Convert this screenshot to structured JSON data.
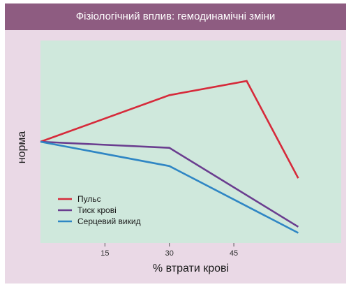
{
  "chart_data": {
    "type": "line",
    "title": "Фізіологічний вплив: гемодинамічні зміни",
    "xlabel": "% втрати крові",
    "ylabel": "норма",
    "x_ticks": [
      15,
      30,
      45
    ],
    "xlim": [
      0,
      70
    ],
    "ylim": [
      0,
      100
    ],
    "grid": false,
    "legend_position": "bottom-left",
    "series": [
      {
        "name": "Пульс",
        "color": "#d62a3a",
        "x": [
          0,
          30,
          48,
          60
        ],
        "y": [
          50,
          73,
          80,
          32
        ]
      },
      {
        "name": "Тиск крові",
        "color": "#6a3d8f",
        "x": [
          0,
          30,
          60
        ],
        "y": [
          50,
          47,
          8
        ]
      },
      {
        "name": "Серцевий викид",
        "color": "#2f86c4",
        "x": [
          0,
          30,
          60
        ],
        "y": [
          50,
          38,
          5
        ]
      }
    ]
  },
  "colors": {
    "title_bar": "#8e5c81",
    "frame": "#ead9e6",
    "plot_background": "#cfe8dc"
  }
}
